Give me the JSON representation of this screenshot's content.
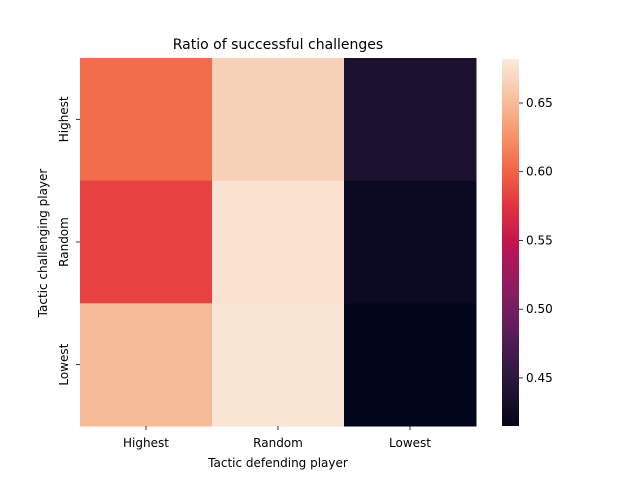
{
  "chart_data": {
    "type": "heatmap",
    "title": "Ratio of successful challenges",
    "xlabel": "Tactic defending player",
    "ylabel": "Tactic challenging player",
    "x_categories": [
      "Highest",
      "Random",
      "Lowest"
    ],
    "y_categories": [
      "Highest",
      "Random",
      "Lowest"
    ],
    "values": [
      [
        0.605,
        0.665,
        0.437
      ],
      [
        0.583,
        0.676,
        0.423
      ],
      [
        0.65,
        0.678,
        0.415
      ]
    ],
    "colorbar": {
      "range": [
        0.415,
        0.682
      ],
      "ticks": [
        0.45,
        0.5,
        0.55,
        0.6,
        0.65
      ],
      "tick_labels": [
        "0.45",
        "0.50",
        "0.55",
        "0.60",
        "0.65"
      ],
      "colormap": "rocket"
    },
    "grid": false
  }
}
